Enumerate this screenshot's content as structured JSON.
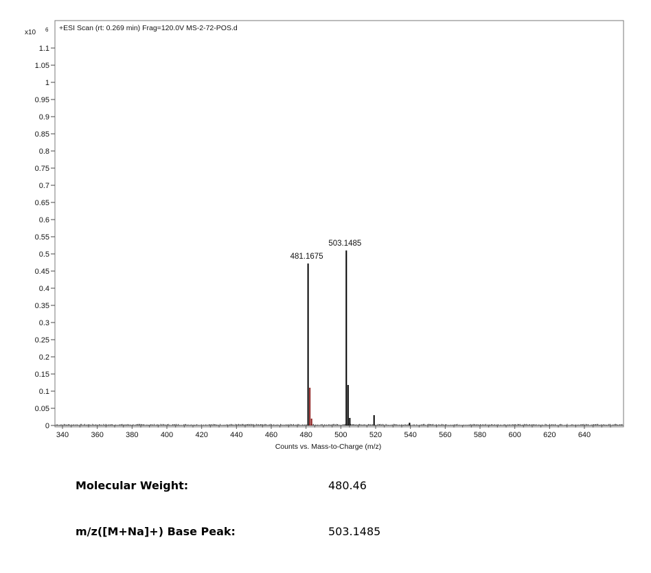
{
  "chart_data": {
    "type": "bar",
    "title": "+ESI Scan (rt: 0.269 min) Frag=120.0V MS-2-72-POS.d",
    "y_multiplier": "x10",
    "y_exponent": "6",
    "xlabel": "Counts vs. Mass-to-Charge (m/z)",
    "ylabel": "",
    "xlim": [
      331,
      660
    ],
    "ylim": [
      0,
      1.17
    ],
    "x_ticks": [
      340,
      360,
      380,
      400,
      420,
      440,
      460,
      480,
      500,
      520,
      540,
      560,
      580,
      600,
      620,
      640
    ],
    "y_ticks": [
      0,
      0.05,
      0.1,
      0.15,
      0.2,
      0.25,
      0.3,
      0.35,
      0.4,
      0.45,
      0.5,
      0.55,
      0.6,
      0.65,
      0.7,
      0.75,
      0.8,
      0.85,
      0.9,
      0.95,
      1,
      1.05,
      1.1
    ],
    "y_tick_labels": [
      "0",
      "0.05",
      "0.1",
      "0.15",
      "0.2",
      "0.25",
      "0.3",
      "0.35",
      "0.4",
      "0.45",
      "0.5",
      "0.55",
      "0.6",
      "0.65",
      "0.7",
      "0.75",
      "0.8",
      "0.85",
      "0.9",
      "0.95",
      "1",
      "1.05",
      "1.1"
    ],
    "peaks": [
      {
        "x": 481.1675,
        "y": 0.472,
        "color": "#000000"
      },
      {
        "x": 482.17,
        "y": 0.11,
        "color": "#8b1a1a"
      },
      {
        "x": 483.17,
        "y": 0.02,
        "color": "#8b1a1a"
      },
      {
        "x": 503.1485,
        "y": 0.51,
        "color": "#000000"
      },
      {
        "x": 504.15,
        "y": 0.118,
        "color": "#000000"
      },
      {
        "x": 505.15,
        "y": 0.022,
        "color": "#000000"
      },
      {
        "x": 519.1,
        "y": 0.03,
        "color": "#000000"
      },
      {
        "x": 539.5,
        "y": 0.008,
        "color": "#000000"
      }
    ],
    "peak_labels": [
      {
        "x": 481.1675,
        "y": 0.472,
        "text": "481.1675"
      },
      {
        "x": 503.1485,
        "y": 0.51,
        "text": "503.1485"
      }
    ],
    "line_color": "#000000",
    "grid": false
  },
  "info": {
    "molecular_weight_label": "Molecular Weight:",
    "molecular_weight_value": "480.46",
    "base_peak_label": "m/z([M+Na]+) Base Peak:",
    "base_peak_value": "503.1485"
  }
}
